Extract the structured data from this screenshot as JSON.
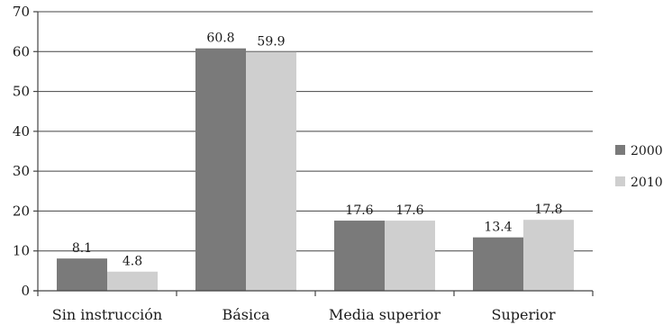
{
  "chart_data": {
    "type": "bar",
    "title": "",
    "xlabel": "",
    "ylabel": "",
    "categories": [
      "Sin instrucción",
      "Básica",
      "Media superior",
      "Superior"
    ],
    "series": [
      {
        "name": "2000",
        "values": [
          8.1,
          60.8,
          17.6,
          13.4
        ],
        "color": "#7a7a7a"
      },
      {
        "name": "2010",
        "values": [
          4.8,
          59.9,
          17.6,
          17.8
        ],
        "color": "#cfcfcf"
      }
    ],
    "ylim": [
      0,
      70
    ],
    "yticks": [
      0,
      10,
      20,
      30,
      40,
      50,
      60,
      70
    ],
    "grid": true,
    "legend_position": "right"
  }
}
